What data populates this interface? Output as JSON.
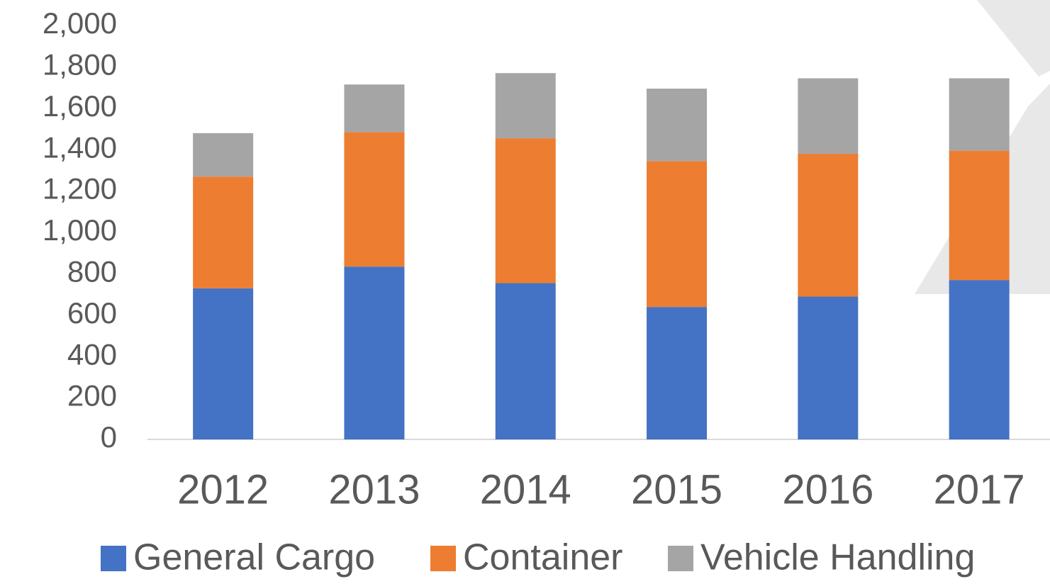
{
  "chart_data": {
    "type": "bar",
    "stacked": true,
    "categories": [
      "2012",
      "2013",
      "2014",
      "2015",
      "2016",
      "2017"
    ],
    "series": [
      {
        "name": "General Cargo",
        "color": "#4472c4",
        "values": [
          730,
          835,
          755,
          640,
          690,
          770
        ]
      },
      {
        "name": "Container",
        "color": "#ed7d31",
        "values": [
          540,
          650,
          700,
          705,
          690,
          625
        ]
      },
      {
        "name": "Vehicle Handling",
        "color": "#a5a5a5",
        "values": [
          210,
          230,
          315,
          350,
          365,
          350
        ]
      }
    ],
    "ylim": [
      0,
      2000
    ],
    "yticks": [
      0,
      200,
      400,
      600,
      800,
      {
        "value": 1000,
        "label": "1,000"
      },
      {
        "value": 1200,
        "label": "1,200"
      },
      {
        "value": 1400,
        "label": "1,400"
      },
      {
        "value": 1600,
        "label": "1,600"
      },
      {
        "value": 1800,
        "label": "1,800"
      },
      {
        "value": 2000,
        "label": "2,000"
      }
    ],
    "grid": false,
    "legend": "bottom"
  }
}
